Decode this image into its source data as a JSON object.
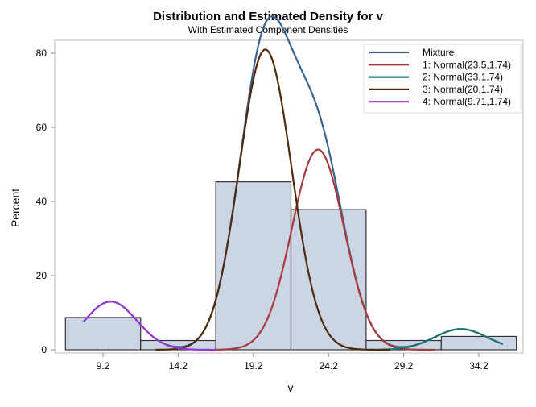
{
  "chart_data": {
    "type": "bar",
    "title": "Distribution and Estimated Density for v",
    "subtitle": "With Estimated Component Densities",
    "xlabel": "v",
    "ylabel": "Percent",
    "xlim": [
      5.5,
      37.2
    ],
    "ylim": [
      0,
      84
    ],
    "x_ticks": [
      "9.2",
      "14.2",
      "19.2",
      "24.2",
      "29.2",
      "34.2"
    ],
    "y_ticks": [
      "0",
      "20",
      "40",
      "60",
      "80"
    ],
    "grid": false,
    "legend_position": "top-right",
    "histogram": {
      "bin_edges": [
        6.7,
        11.7,
        16.7,
        21.7,
        26.7,
        31.7,
        36.7
      ],
      "percents": [
        8.7,
        2.5,
        45.3,
        37.8,
        2.5,
        3.6
      ],
      "fill": "#cbd5e5",
      "stroke": "#333333"
    },
    "series": [
      {
        "name": "Mixture",
        "color": "#3b6590",
        "range": [
          7.9,
          35.8
        ],
        "mixture": true
      },
      {
        "name": "1: Normal(23.5,1.74)",
        "mean": 23.5,
        "sd": 1.74,
        "peak_percent": 54,
        "color": "#a83a3a",
        "range": [
          16.7,
          31.3
        ]
      },
      {
        "name": "2: Normal(33,1.74)",
        "mean": 33,
        "sd": 1.74,
        "peak_percent": 5.6,
        "color": "#1d7272",
        "range": [
          27.5,
          35.8
        ]
      },
      {
        "name": "3: Normal(20,1.74)",
        "mean": 20,
        "sd": 1.74,
        "peak_percent": 81,
        "color": "#4e2a0a",
        "range": [
          12.7,
          28.3
        ]
      },
      {
        "name": "4: Normal(9.71,1.74)",
        "mean": 9.71,
        "sd": 1.74,
        "peak_percent": 13,
        "color": "#9b35d6",
        "range": [
          7.9,
          16.7
        ]
      }
    ]
  }
}
